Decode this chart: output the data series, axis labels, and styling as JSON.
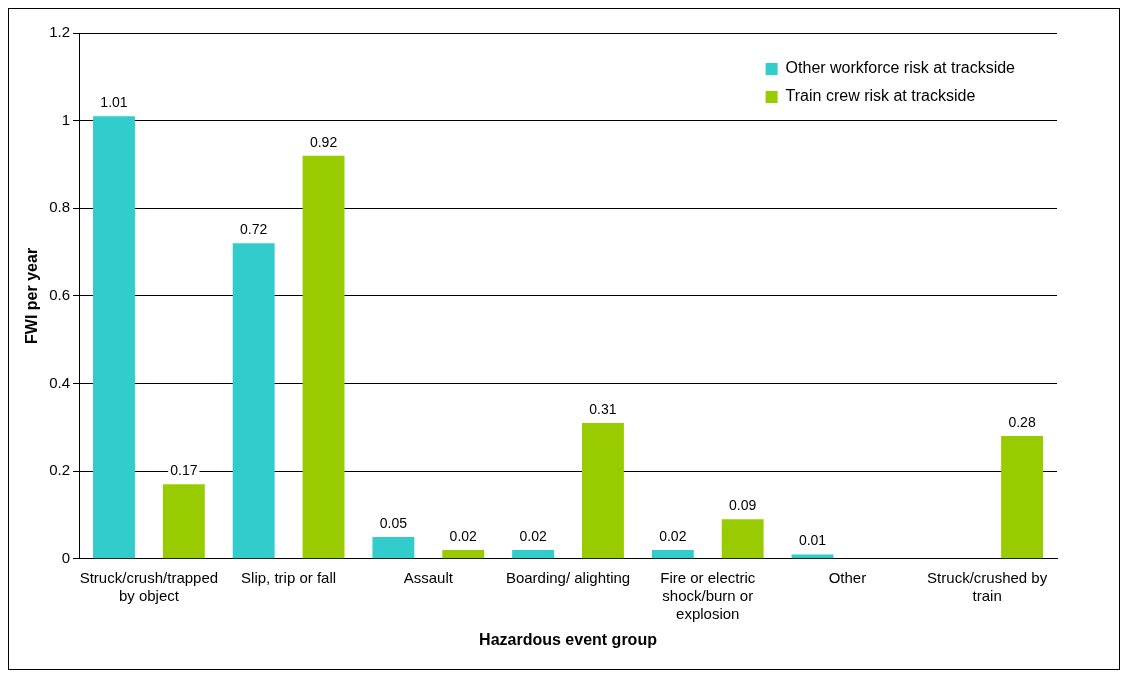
{
  "chart_data": {
    "type": "bar",
    "xlabel": "Hazardous event group",
    "ylabel": "FWI per year",
    "categories": [
      "Struck/crush/trapped by object",
      "Slip, trip or fall",
      "Assault",
      "Boarding/ alighting",
      "Fire or electric shock/burn or explosion",
      "Other",
      "Struck/crushed by train"
    ],
    "series": [
      {
        "name": "Other workforce risk at trackside",
        "color": "#33cccc",
        "values": [
          1.01,
          0.72,
          0.05,
          0.02,
          0.02,
          0.01,
          null
        ]
      },
      {
        "name": "Train crew risk at trackside",
        "color": "#99cc00",
        "values": [
          0.17,
          0.92,
          0.02,
          0.31,
          0.09,
          null,
          0.28
        ]
      }
    ],
    "ylim": [
      0,
      1.2
    ],
    "yticks": [
      0,
      0.2,
      0.4,
      0.6,
      0.8,
      1,
      1.2
    ],
    "grid": "y",
    "legend": "top right",
    "data_labels": true
  }
}
